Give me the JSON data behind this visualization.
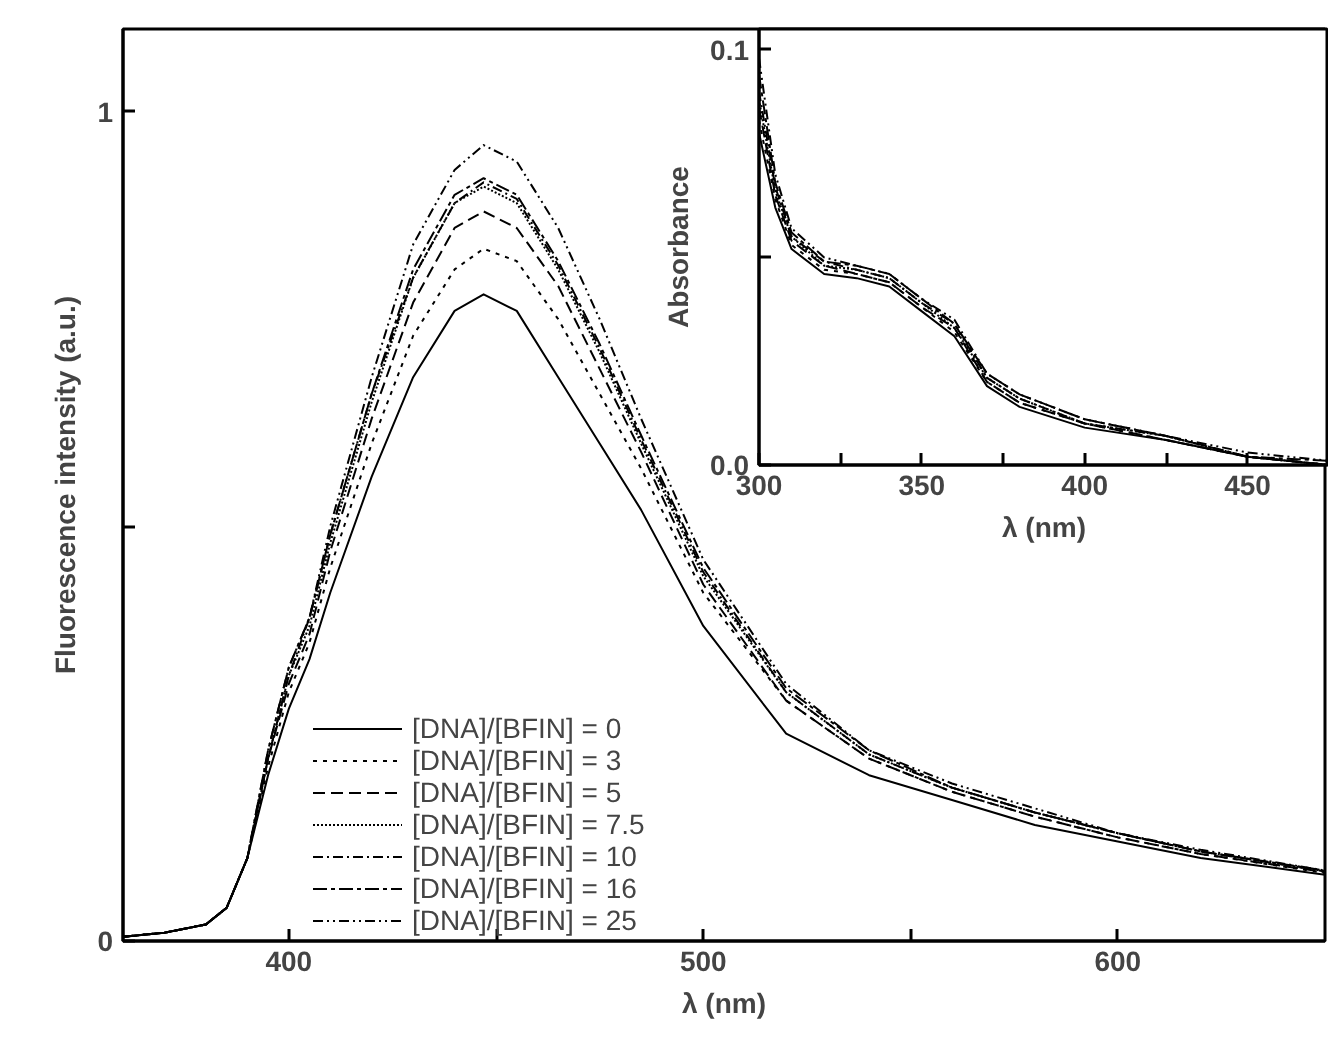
{
  "chart_data": [
    {
      "type": "line",
      "xlabel": "λ (nm)",
      "ylabel": "Fluorescence intensity (a.u.)",
      "xlim": [
        360,
        650
      ],
      "ylim": [
        0,
        1.1
      ],
      "xticks": [
        400,
        {
          "value": 450,
          "label": null
        },
        500,
        {
          "value": 550,
          "label": null
        },
        600
      ],
      "yticks": [
        0,
        {
          "value": 0.5,
          "label": null
        },
        1
      ],
      "grid": false,
      "legend": "bottom",
      "marker": "none",
      "x": [
        360,
        370,
        380,
        385,
        390,
        395,
        400,
        405,
        410,
        420,
        430,
        440,
        447,
        455,
        465,
        475,
        485,
        500,
        520,
        540,
        560,
        580,
        600,
        620,
        650
      ],
      "series": [
        {
          "name": "[DNA]/[BFIN] = 0",
          "color": "#000000",
          "line_style": "solid",
          "values": [
            0.005,
            0.01,
            0.02,
            0.04,
            0.1,
            0.2,
            0.28,
            0.34,
            0.42,
            0.56,
            0.68,
            0.76,
            0.78,
            0.76,
            0.68,
            0.6,
            0.52,
            0.38,
            0.25,
            0.2,
            0.17,
            0.14,
            0.12,
            0.1,
            0.08
          ]
        },
        {
          "name": "[DNA]/[BFIN] = 3",
          "color": "#000000",
          "line_style": "dotted",
          "values": [
            0.005,
            0.01,
            0.02,
            0.04,
            0.1,
            0.21,
            0.3,
            0.36,
            0.45,
            0.6,
            0.73,
            0.81,
            0.835,
            0.82,
            0.75,
            0.66,
            0.57,
            0.42,
            0.29,
            0.22,
            0.18,
            0.15,
            0.125,
            0.105,
            0.082
          ]
        },
        {
          "name": "[DNA]/[BFIN] = 5",
          "color": "#000000",
          "line_style": "dashed",
          "values": [
            0.005,
            0.01,
            0.02,
            0.04,
            0.1,
            0.22,
            0.31,
            0.37,
            0.47,
            0.63,
            0.77,
            0.86,
            0.88,
            0.86,
            0.79,
            0.69,
            0.59,
            0.43,
            0.29,
            0.22,
            0.18,
            0.15,
            0.125,
            0.105,
            0.083
          ]
        },
        {
          "name": "[DNA]/[BFIN] = 7.5",
          "color": "#000000",
          "line_style": "densedot",
          "values": [
            0.005,
            0.01,
            0.02,
            0.04,
            0.1,
            0.22,
            0.32,
            0.38,
            0.48,
            0.65,
            0.8,
            0.89,
            0.91,
            0.89,
            0.81,
            0.71,
            0.6,
            0.44,
            0.3,
            0.225,
            0.185,
            0.155,
            0.13,
            0.108,
            0.084
          ]
        },
        {
          "name": "[DNA]/[BFIN] = 10",
          "color": "#000000",
          "line_style": "dashdot",
          "values": [
            0.005,
            0.01,
            0.02,
            0.04,
            0.1,
            0.22,
            0.32,
            0.39,
            0.49,
            0.66,
            0.8,
            0.89,
            0.915,
            0.895,
            0.815,
            0.715,
            0.605,
            0.445,
            0.3,
            0.225,
            0.185,
            0.155,
            0.13,
            0.108,
            0.084
          ]
        },
        {
          "name": "[DNA]/[BFIN] = 16",
          "color": "#000000",
          "line_style": "longdashdot",
          "values": [
            0.005,
            0.01,
            0.02,
            0.04,
            0.1,
            0.23,
            0.33,
            0.39,
            0.49,
            0.66,
            0.81,
            0.9,
            0.92,
            0.9,
            0.82,
            0.72,
            0.61,
            0.45,
            0.305,
            0.23,
            0.185,
            0.155,
            0.13,
            0.108,
            0.085
          ]
        },
        {
          "name": "[DNA]/[BFIN] = 25",
          "color": "#000000",
          "line_style": "dashdotdot",
          "values": [
            0.005,
            0.01,
            0.02,
            0.04,
            0.1,
            0.23,
            0.33,
            0.39,
            0.5,
            0.68,
            0.84,
            0.93,
            0.96,
            0.94,
            0.86,
            0.75,
            0.63,
            0.46,
            0.31,
            0.23,
            0.19,
            0.16,
            0.13,
            0.11,
            0.085
          ]
        }
      ]
    },
    {
      "type": "line",
      "xlabel": "λ (nm)",
      "ylabel": "Absorbance",
      "xlim": [
        300,
        475
      ],
      "ylim": [
        0,
        0.105
      ],
      "xticks": [
        300,
        {
          "value": 325,
          "label": null
        },
        350,
        {
          "value": 375,
          "label": null
        },
        400,
        {
          "value": 425,
          "label": null
        },
        450
      ],
      "yticks": [
        {
          "value": 0,
          "label": "0.0"
        },
        {
          "value": 0.05,
          "label": null
        },
        0.1
      ],
      "grid": false,
      "marker": "none",
      "x": [
        300,
        305,
        310,
        320,
        330,
        340,
        350,
        360,
        370,
        380,
        400,
        425,
        450,
        475
      ],
      "series": [
        {
          "color": "#000000",
          "line_style": "solid",
          "values": [
            0.08,
            0.062,
            0.052,
            0.046,
            0.045,
            0.043,
            0.037,
            0.031,
            0.019,
            0.014,
            0.009,
            0.006,
            0.002,
            0.0
          ]
        },
        {
          "color": "#000000",
          "line_style": "dotted",
          "values": [
            0.083,
            0.064,
            0.053,
            0.047,
            0.046,
            0.044,
            0.038,
            0.032,
            0.02,
            0.015,
            0.01,
            0.006,
            0.002,
            0.0
          ]
        },
        {
          "color": "#000000",
          "line_style": "dashed",
          "values": [
            0.086,
            0.065,
            0.054,
            0.048,
            0.046,
            0.044,
            0.038,
            0.033,
            0.02,
            0.015,
            0.01,
            0.006,
            0.002,
            0.0
          ]
        },
        {
          "color": "#000000",
          "line_style": "densedot",
          "values": [
            0.088,
            0.066,
            0.055,
            0.048,
            0.047,
            0.045,
            0.039,
            0.033,
            0.021,
            0.016,
            0.01,
            0.007,
            0.002,
            0.0
          ]
        },
        {
          "color": "#000000",
          "line_style": "dashdot",
          "values": [
            0.09,
            0.067,
            0.055,
            0.049,
            0.047,
            0.045,
            0.039,
            0.034,
            0.021,
            0.016,
            0.01,
            0.007,
            0.002,
            0.0
          ]
        },
        {
          "color": "#000000",
          "line_style": "longdashdot",
          "values": [
            0.094,
            0.068,
            0.056,
            0.049,
            0.048,
            0.046,
            0.04,
            0.034,
            0.022,
            0.017,
            0.011,
            0.007,
            0.002,
            0.001
          ]
        },
        {
          "color": "#000000",
          "line_style": "dashdotdot",
          "values": [
            0.098,
            0.07,
            0.057,
            0.05,
            0.048,
            0.046,
            0.04,
            0.035,
            0.022,
            0.017,
            0.011,
            0.007,
            0.003,
            0.001
          ]
        }
      ]
    }
  ]
}
